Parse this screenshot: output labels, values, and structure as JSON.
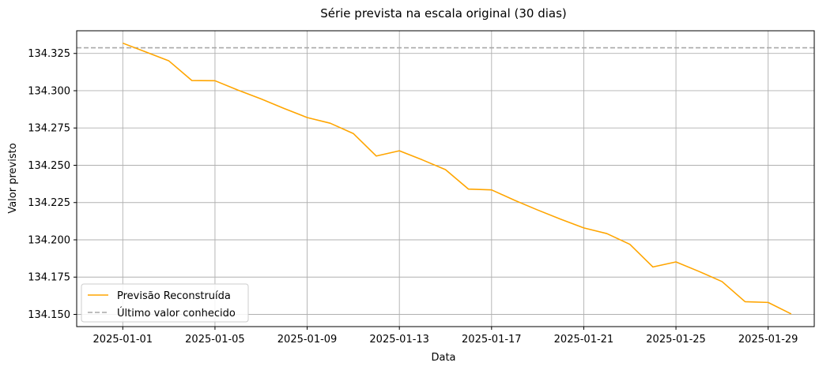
{
  "chart_data": {
    "type": "line",
    "title": "Série prevista na escala original (30 dias)",
    "xlabel": "Data",
    "ylabel": "Valor previsto",
    "x": [
      "2025-01-01",
      "2025-01-02",
      "2025-01-03",
      "2025-01-04",
      "2025-01-05",
      "2025-01-06",
      "2025-01-07",
      "2025-01-08",
      "2025-01-09",
      "2025-01-10",
      "2025-01-11",
      "2025-01-12",
      "2025-01-13",
      "2025-01-14",
      "2025-01-15",
      "2025-01-16",
      "2025-01-17",
      "2025-01-18",
      "2025-01-19",
      "2025-01-20",
      "2025-01-21",
      "2025-01-22",
      "2025-01-23",
      "2025-01-24",
      "2025-01-25",
      "2025-01-26",
      "2025-01-27",
      "2025-01-28",
      "2025-01-29",
      "2025-01-30"
    ],
    "series": [
      {
        "name": "Previsão Reconstruída",
        "color": "#ffa500",
        "values": [
          134.3319,
          134.326,
          134.32,
          134.3068,
          134.3067,
          134.3004,
          134.2945,
          134.2881,
          134.282,
          134.2782,
          134.2713,
          134.2562,
          134.2597,
          134.2536,
          134.2471,
          134.234,
          134.2335,
          134.2265,
          134.22,
          134.2138,
          134.208,
          134.2042,
          134.197,
          134.1818,
          134.1852,
          134.1788,
          134.172,
          134.1585,
          134.158,
          134.1503
        ]
      }
    ],
    "reference_line": {
      "name": "Último valor conhecido",
      "value": 134.3288,
      "color": "#a9a9a9",
      "style": "dashed"
    },
    "x_ticks": [
      "2025-01-01",
      "2025-01-05",
      "2025-01-09",
      "2025-01-13",
      "2025-01-17",
      "2025-01-21",
      "2025-01-25",
      "2025-01-29"
    ],
    "y_ticks": [
      "134.150",
      "134.175",
      "134.200",
      "134.225",
      "134.250",
      "134.275",
      "134.300",
      "134.325"
    ],
    "xlim": [
      "2024-12-30",
      "2025-01-31"
    ],
    "ylim": [
      134.1418,
      134.3402
    ],
    "grid": true,
    "legend_position": "lower-left"
  }
}
